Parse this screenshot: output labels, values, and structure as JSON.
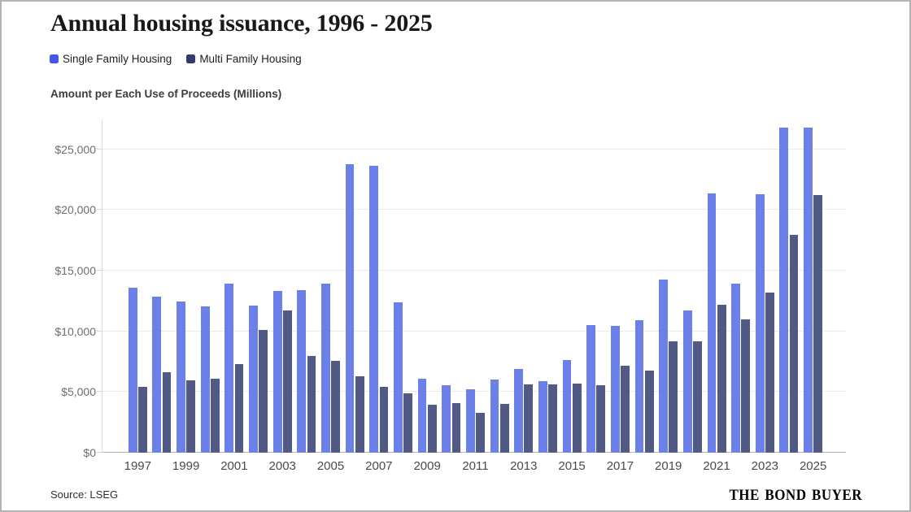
{
  "title": "Annual housing issuance, 1996 - 2025",
  "subtitle": "Amount per Each Use of Proceeds (Millions)",
  "legend": {
    "items": [
      {
        "label": "Single Family Housing",
        "color": "#4356ee"
      },
      {
        "label": "Multi Family Housing",
        "color": "#2f3a6d"
      }
    ]
  },
  "footer": {
    "source": "Source: LSEG",
    "logo_text": "The Bond Buyer"
  },
  "chart_data": {
    "type": "bar",
    "title": "Annual housing issuance, 1996 - 2025",
    "subtitle_axis_label": "Amount per Each Use of Proceeds (Millions)",
    "categories": [
      1997,
      1998,
      1999,
      2000,
      2001,
      2002,
      2003,
      2004,
      2005,
      2006,
      2007,
      2008,
      2009,
      2010,
      2011,
      2012,
      2013,
      2014,
      2015,
      2016,
      2017,
      2018,
      2019,
      2020,
      2021,
      2022,
      2023,
      2024,
      2025
    ],
    "series": [
      {
        "name": "Single Family Housing",
        "bar_color": "#6c80ea",
        "values": [
          13600,
          12850,
          12450,
          12050,
          13900,
          12150,
          13300,
          13400,
          13900,
          23800,
          23650,
          12400,
          6100,
          5550,
          5250,
          6000,
          6900,
          5900,
          7650,
          10500,
          10450,
          10900,
          14250,
          11750,
          21350,
          13900,
          21300,
          26800,
          26800
        ]
      },
      {
        "name": "Multi Family Housing",
        "bar_color": "#505a84",
        "values": [
          5400,
          6650,
          5950,
          6100,
          7300,
          10100,
          11700,
          7950,
          7550,
          6300,
          5450,
          4900,
          3950,
          4100,
          3250,
          4050,
          5600,
          5600,
          5700,
          5550,
          7150,
          6750,
          9200,
          9150,
          12200,
          11000,
          13200,
          17950,
          21250
        ]
      }
    ],
    "y_ticks": [
      {
        "value": 0,
        "label": "$0"
      },
      {
        "value": 5000,
        "label": "$5,000"
      },
      {
        "value": 10000,
        "label": "$10,000"
      },
      {
        "value": 15000,
        "label": "$15,000"
      },
      {
        "value": 20000,
        "label": "$20,000"
      },
      {
        "value": 25000,
        "label": "$25,000"
      }
    ],
    "x_tick_labels": [
      "1997",
      "1999",
      "2001",
      "2003",
      "2005",
      "2007",
      "2009",
      "2011",
      "2013",
      "2015",
      "2017",
      "2019",
      "2021",
      "2023",
      "2025"
    ],
    "ylim": [
      0,
      26800
    ],
    "grid": "horizontal",
    "legend_position": "top-left"
  }
}
